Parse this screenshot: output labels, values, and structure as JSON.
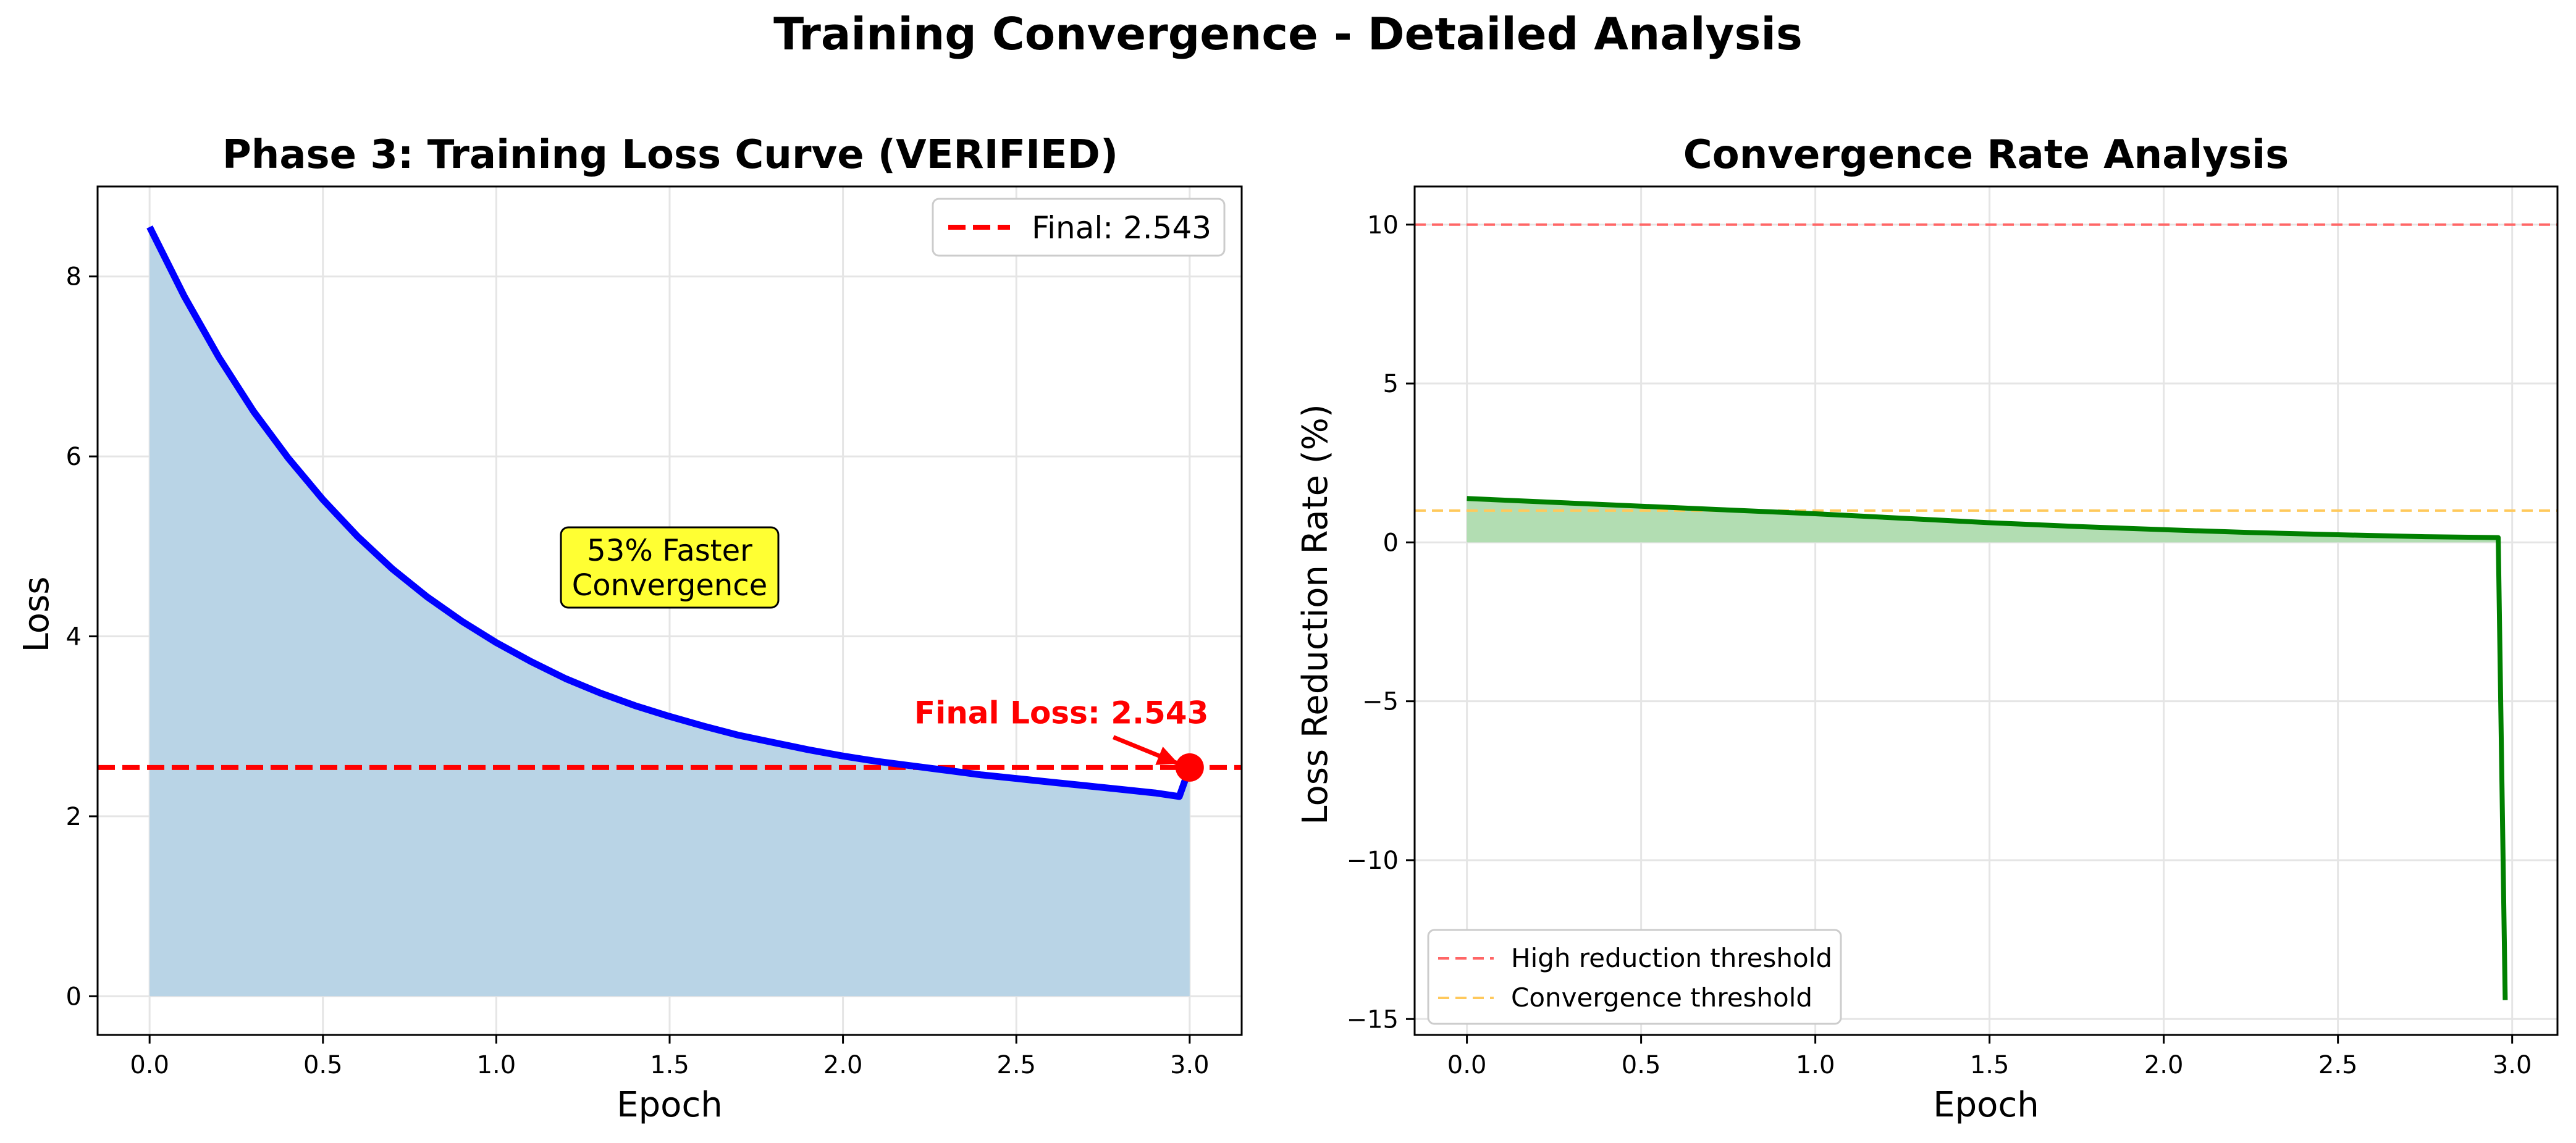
{
  "figure": {
    "title": "Training Convergence - Detailed Analysis"
  },
  "colors": {
    "loss_line": "#0000ff",
    "loss_fill": "#b9d4e6",
    "final_line": "#ff0000",
    "rate_line": "#008000",
    "rate_fill": "#b2ddb2",
    "high_threshold": "#ff6666",
    "conv_threshold": "#ffc95c",
    "callout_box": "#ffff33",
    "grid": "#e5e5e5"
  },
  "chart_data": [
    {
      "type": "area",
      "title": "Phase 3: Training Loss Curve (VERIFIED)",
      "xlabel": "Epoch",
      "ylabel": "Loss",
      "xlim": [
        -0.15,
        3.15
      ],
      "ylim": [
        -0.43,
        9.0
      ],
      "xticks": [
        0.0,
        0.5,
        1.0,
        1.5,
        2.0,
        2.5,
        3.0
      ],
      "xtick_labels": [
        "0.0",
        "0.5",
        "1.0",
        "1.5",
        "2.0",
        "2.5",
        "3.0"
      ],
      "yticks": [
        0,
        2,
        4,
        6,
        8
      ],
      "ytick_labels": [
        "0",
        "2",
        "4",
        "6",
        "8"
      ],
      "grid": true,
      "legend_position": "top-right",
      "series": [
        {
          "kind": "line_with_fill",
          "x": [
            0.0,
            0.1,
            0.2,
            0.3,
            0.4,
            0.5,
            0.6,
            0.7,
            0.8,
            0.9,
            1.0,
            1.1,
            1.2,
            1.3,
            1.4,
            1.5,
            1.6,
            1.7,
            1.8,
            1.9,
            2.0,
            2.1,
            2.2,
            2.3,
            2.4,
            2.5,
            2.6,
            2.7,
            2.8,
            2.9,
            2.97,
            3.0
          ],
          "y": [
            8.55,
            7.78,
            7.1,
            6.5,
            5.98,
            5.52,
            5.11,
            4.75,
            4.44,
            4.17,
            3.93,
            3.72,
            3.53,
            3.37,
            3.23,
            3.11,
            3.0,
            2.9,
            2.82,
            2.74,
            2.67,
            2.61,
            2.56,
            2.51,
            2.46,
            2.42,
            2.38,
            2.34,
            2.3,
            2.26,
            2.22,
            2.543
          ]
        }
      ],
      "hlines": [
        {
          "y": 2.543,
          "style": "dashed",
          "legend": "Final: 2.543"
        }
      ],
      "point": {
        "x": 3.0,
        "y": 2.543
      },
      "annotations": [
        {
          "text": "Final Loss: 2.543",
          "text_x": 2.2,
          "text_y": 3.1,
          "arrow_to_x": 3.0,
          "arrow_to_y": 2.543
        },
        {
          "text_lines": [
            "53% Faster",
            "Convergence"
          ],
          "x": 1.5,
          "y": 4.1,
          "boxed": true
        }
      ]
    },
    {
      "type": "line",
      "title": "Convergence Rate Analysis",
      "xlabel": "Epoch",
      "ylabel": "Loss Reduction Rate (%)",
      "xlim": [
        -0.15,
        3.13
      ],
      "ylim": [
        -15.5,
        11.2
      ],
      "xticks": [
        0.0,
        0.5,
        1.0,
        1.5,
        2.0,
        2.5,
        3.0
      ],
      "xtick_labels": [
        "0.0",
        "0.5",
        "1.0",
        "1.5",
        "2.0",
        "2.5",
        "3.0"
      ],
      "yticks": [
        -15,
        -10,
        -5,
        0,
        5,
        10
      ],
      "ytick_labels": [
        "−15",
        "−10",
        "−5",
        "0",
        "5",
        "10"
      ],
      "grid": true,
      "legend_position": "lower-left",
      "series": [
        {
          "kind": "line_with_fill_to_zero",
          "x": [
            0.0,
            0.25,
            0.5,
            0.75,
            1.0,
            1.25,
            1.5,
            1.75,
            2.0,
            2.25,
            2.5,
            2.75,
            2.96,
            2.98
          ],
          "y": [
            1.38,
            1.26,
            1.14,
            1.02,
            0.9,
            0.76,
            0.62,
            0.5,
            0.4,
            0.31,
            0.24,
            0.18,
            0.15,
            -14.4
          ]
        }
      ],
      "hlines": [
        {
          "y": 10,
          "style": "dashed",
          "legend": "High reduction threshold"
        },
        {
          "y": 1,
          "style": "dashed",
          "legend": "Convergence threshold"
        }
      ]
    }
  ]
}
